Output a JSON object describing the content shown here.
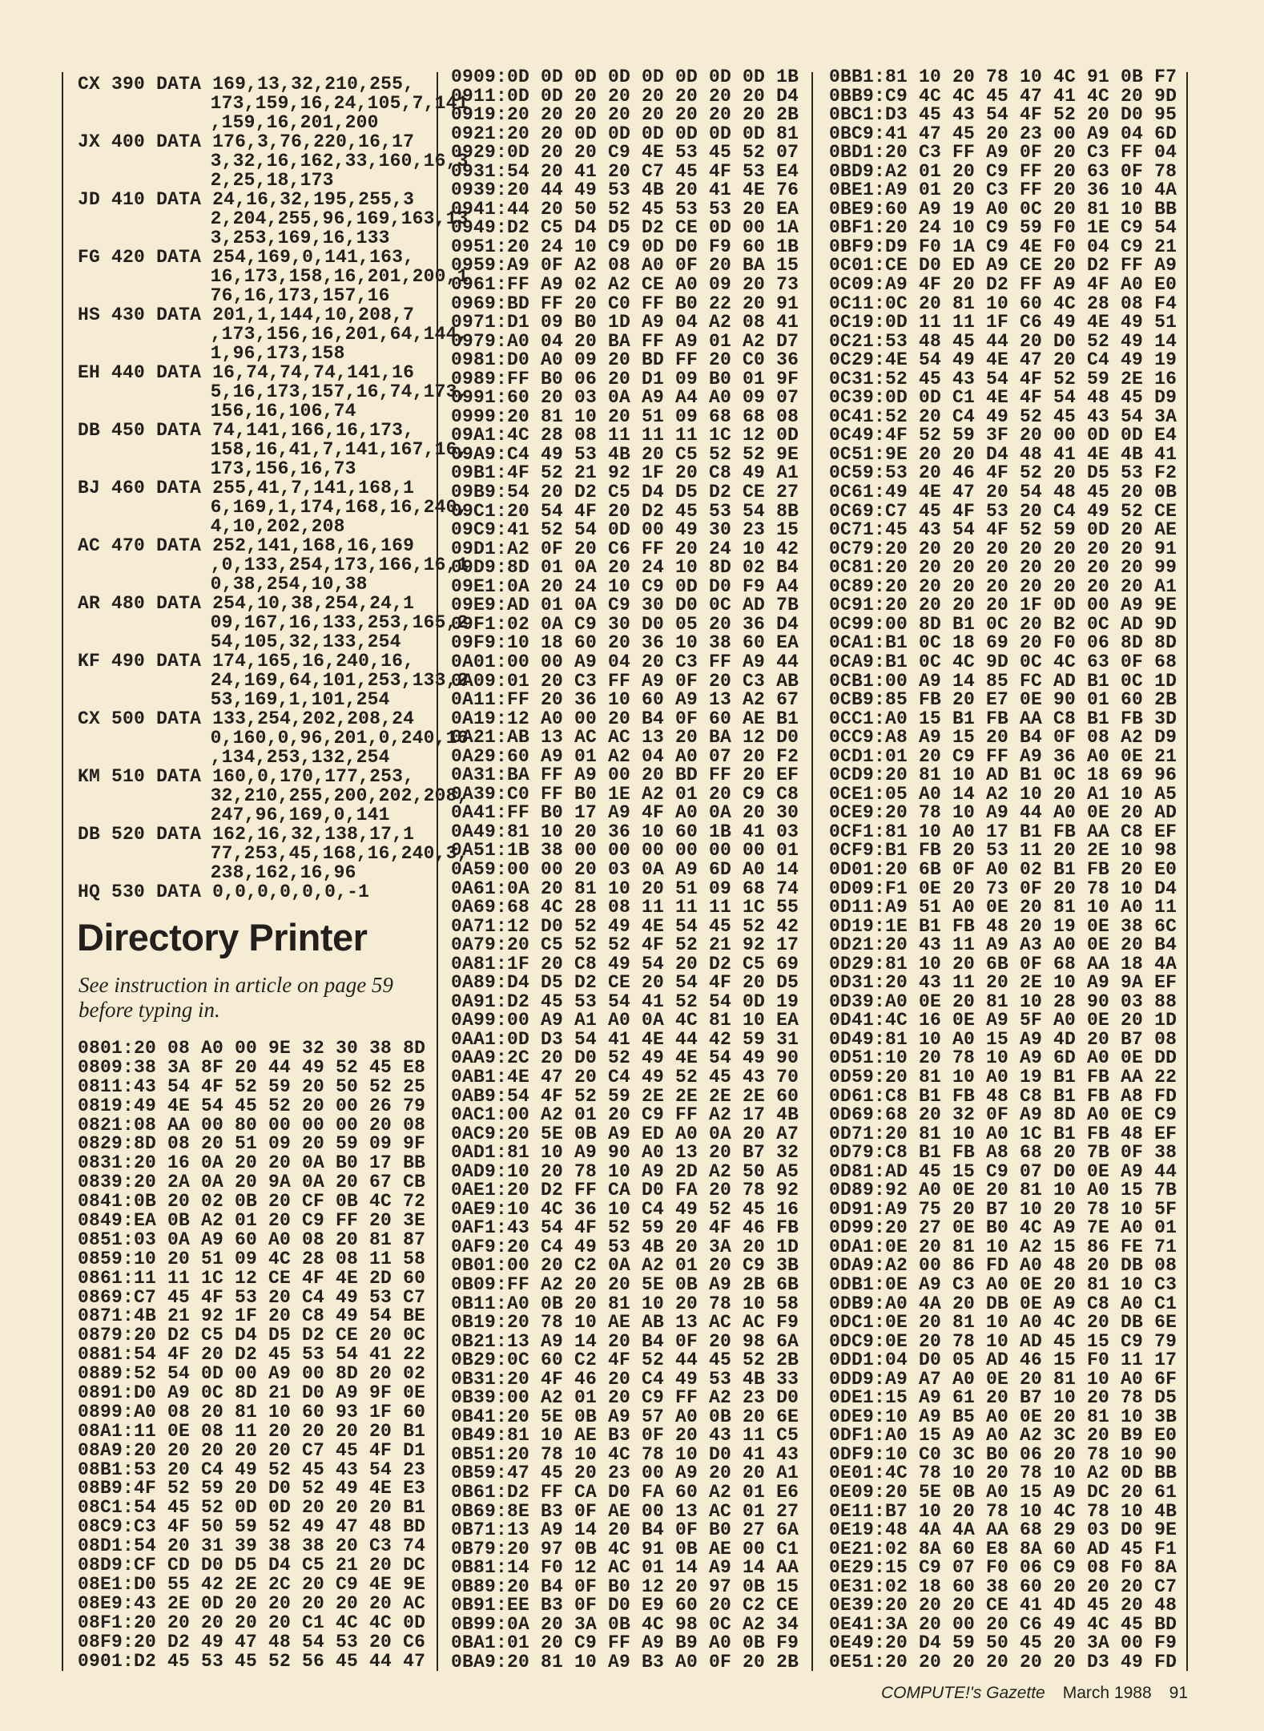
{
  "basic_listing": {
    "keyword": "DATA",
    "statements": [
      {
        "checksum": "CX",
        "number": "390",
        "data": [
          "169,13,32,210,255,",
          "173,159,16,24,105,7,141",
          ",159,16,201,200"
        ]
      },
      {
        "checksum": "JX",
        "number": "400",
        "data": [
          "176,3,76,220,16,17",
          "3,32,16,162,33,160,16,3",
          "2,25,18,173"
        ]
      },
      {
        "checksum": "JD",
        "number": "410",
        "data": [
          "24,16,32,195,255,3",
          "2,204,255,96,169,163,13",
          "3,253,169,16,133"
        ]
      },
      {
        "checksum": "FG",
        "number": "420",
        "data": [
          "254,169,0,141,163,",
          "16,173,158,16,201,200,1",
          "76,16,173,157,16"
        ]
      },
      {
        "checksum": "HS",
        "number": "430",
        "data": [
          "201,1,144,10,208,7",
          ",173,156,16,201,64,144,",
          "1,96,173,158"
        ]
      },
      {
        "checksum": "EH",
        "number": "440",
        "data": [
          "16,74,74,74,141,16",
          "5,16,173,157,16,74,173,",
          "156,16,106,74"
        ]
      },
      {
        "checksum": "DB",
        "number": "450",
        "data": [
          "74,141,166,16,173,",
          "158,16,41,7,141,167,16,",
          "173,156,16,73"
        ]
      },
      {
        "checksum": "BJ",
        "number": "460",
        "data": [
          "255,41,7,141,168,1",
          "6,169,1,174,168,16,240,",
          "4,10,202,208"
        ]
      },
      {
        "checksum": "AC",
        "number": "470",
        "data": [
          "252,141,168,16,169",
          ",0,133,254,173,166,16,1",
          "0,38,254,10,38"
        ]
      },
      {
        "checksum": "AR",
        "number": "480",
        "data": [
          "254,10,38,254,24,1",
          "09,167,16,133,253,165,2",
          "54,105,32,133,254"
        ]
      },
      {
        "checksum": "KF",
        "number": "490",
        "data": [
          "174,165,16,240,16,",
          "24,169,64,101,253,133,2",
          "53,169,1,101,254"
        ]
      },
      {
        "checksum": "CX",
        "number": "500",
        "data": [
          "133,254,202,208,24",
          "0,160,0,96,201,0,240,16",
          ",134,253,132,254"
        ]
      },
      {
        "checksum": "KM",
        "number": "510",
        "data": [
          "160,0,170,177,253,",
          "32,210,255,200,202,208,",
          "247,96,169,0,141"
        ]
      },
      {
        "checksum": "DB",
        "number": "520",
        "data": [
          "162,16,32,138,17,1",
          "77,253,45,168,16,240,3,",
          "238,162,16,96"
        ]
      },
      {
        "checksum": "HQ",
        "number": "530",
        "data": [
          "0,0,0,0,0,0,-1"
        ]
      }
    ]
  },
  "article": {
    "title": "Directory Printer",
    "instructions": "See instruction in article on page 59 before typing in."
  },
  "hex_columns": [
    [
      "0801:20 08 A0 00 9E 32 30 38 8D",
      "0809:38 3A 8F 20 44 49 52 45 E8",
      "0811:43 54 4F 52 59 20 50 52 25",
      "0819:49 4E 54 45 52 20 00 26 79",
      "0821:08 AA 00 80 00 00 00 20 08",
      "0829:8D 08 20 51 09 20 59 09 9F",
      "0831:20 16 0A 20 20 0A B0 17 BB",
      "0839:20 2A 0A 20 9A 0A 20 67 CB",
      "0841:0B 20 02 0B 20 CF 0B 4C 72",
      "0849:EA 0B A2 01 20 C9 FF 20 3E",
      "0851:03 0A A9 60 A0 08 20 81 87",
      "0859:10 20 51 09 4C 28 08 11 58",
      "0861:11 11 1C 12 CE 4F 4E 2D 60",
      "0869:C7 45 4F 53 20 C4 49 53 C7",
      "0871:4B 21 92 1F 20 C8 49 54 BE",
      "0879:20 D2 C5 D4 D5 D2 CE 20 0C",
      "0881:54 4F 20 D2 45 53 54 41 22",
      "0889:52 54 0D 00 A9 00 8D 20 02",
      "0891:D0 A9 0C 8D 21 D0 A9 9F 0E",
      "0899:A0 08 20 81 10 60 93 1F 60",
      "08A1:11 0E 08 11 20 20 20 20 B1",
      "08A9:20 20 20 20 20 C7 45 4F D1",
      "08B1:53 20 C4 49 52 45 43 54 23",
      "08B9:4F 52 59 20 D0 52 49 4E E3",
      "08C1:54 45 52 0D 0D 20 20 20 B1",
      "08C9:C3 4F 50 59 52 49 47 48 BD",
      "08D1:54 20 31 39 38 38 20 C3 74",
      "08D9:CF CD D0 D5 D4 C5 21 20 DC",
      "08E1:D0 55 42 2E 2C 20 C9 4E 9E",
      "08E9:43 2E 0D 20 20 20 20 20 AC",
      "08F1:20 20 20 20 20 C1 4C 4C 0D",
      "08F9:20 D2 49 47 48 54 53 20 C6",
      "0901:D2 45 53 45 52 56 45 44 47"
    ],
    [
      "0909:0D 0D 0D 0D 0D 0D 0D 0D 1B",
      "0911:0D 0D 20 20 20 20 20 20 D4",
      "0919:20 20 20 20 20 20 20 20 2B",
      "0921:20 20 0D 0D 0D 0D 0D 0D 81",
      "0929:0D 20 20 C9 4E 53 45 52 07",
      "0931:54 20 41 20 C7 45 4F 53 E4",
      "0939:20 44 49 53 4B 20 41 4E 76",
      "0941:44 20 50 52 45 53 53 20 EA",
      "0949:D2 C5 D4 D5 D2 CE 0D 00 1A",
      "0951:20 24 10 C9 0D D0 F9 60 1B",
      "0959:A9 0F A2 08 A0 0F 20 BA 15",
      "0961:FF A9 02 A2 CE A0 09 20 73",
      "0969:BD FF 20 C0 FF B0 22 20 91",
      "0971:D1 09 B0 1D A9 04 A2 08 41",
      "0979:A0 04 20 BA FF A9 01 A2 D7",
      "0981:D0 A0 09 20 BD FF 20 C0 36",
      "0989:FF B0 06 20 D1 09 B0 01 9F",
      "0991:60 20 03 0A A9 A4 A0 09 07",
      "0999:20 81 10 20 51 09 68 68 08",
      "09A1:4C 28 08 11 11 11 1C 12 0D",
      "09A9:C4 49 53 4B 20 C5 52 52 9E",
      "09B1:4F 52 21 92 1F 20 C8 49 A1",
      "09B9:54 20 D2 C5 D4 D5 D2 CE 27",
      "09C1:20 54 4F 20 D2 45 53 54 8B",
      "09C9:41 52 54 0D 00 49 30 23 15",
      "09D1:A2 0F 20 C6 FF 20 24 10 42",
      "09D9:8D 01 0A 20 24 10 8D 02 B4",
      "09E1:0A 20 24 10 C9 0D D0 F9 A4",
      "09E9:AD 01 0A C9 30 D0 0C AD 7B",
      "09F1:02 0A C9 30 D0 05 20 36 D4",
      "09F9:10 18 60 20 36 10 38 60 EA",
      "0A01:00 00 A9 04 20 C3 FF A9 44",
      "0A09:01 20 C3 FF A9 0F 20 C3 AB",
      "0A11:FF 20 36 10 60 A9 13 A2 67",
      "0A19:12 A0 00 20 B4 0F 60 AE B1",
      "0A21:AB 13 AC AC 13 20 BA 12 D0",
      "0A29:60 A9 01 A2 04 A0 07 20 F2",
      "0A31:BA FF A9 00 20 BD FF 20 EF",
      "0A39:C0 FF B0 1E A2 01 20 C9 C8",
      "0A41:FF B0 17 A9 4F A0 0A 20 30",
      "0A49:81 10 20 36 10 60 1B 41 03",
      "0A51:1B 38 00 00 00 00 00 00 01",
      "0A59:00 00 20 03 0A A9 6D A0 14",
      "0A61:0A 20 81 10 20 51 09 68 74",
      "0A69:68 4C 28 08 11 11 11 1C 55",
      "0A71:12 D0 52 49 4E 54 45 52 42",
      "0A79:20 C5 52 52 4F 52 21 92 17",
      "0A81:1F 20 C8 49 54 20 D2 C5 69",
      "0A89:D4 D5 D2 CE 20 54 4F 20 D5",
      "0A91:D2 45 53 54 41 52 54 0D 19",
      "0A99:00 A9 A1 A0 0A 4C 81 10 EA",
      "0AA1:0D D3 54 41 4E 44 42 59 31",
      "0AA9:2C 20 D0 52 49 4E 54 49 90",
      "0AB1:4E 47 20 C4 49 52 45 43 70",
      "0AB9:54 4F 52 59 2E 2E 2E 2E 60",
      "0AC1:00 A2 01 20 C9 FF A2 17 4B",
      "0AC9:20 5E 0B A9 ED A0 0A 20 A7",
      "0AD1:81 10 A9 90 A0 13 20 B7 32",
      "0AD9:10 20 78 10 A9 2D A2 50 A5",
      "0AE1:20 D2 FF CA D0 FA 20 78 92",
      "0AE9:10 4C 36 10 C4 49 52 45 16",
      "0AF1:43 54 4F 52 59 20 4F 46 FB",
      "0AF9:20 C4 49 53 4B 20 3A 20 1D",
      "0B01:00 20 C2 0A A2 01 20 C9 3B",
      "0B09:FF A2 20 20 5E 0B A9 2B 6B",
      "0B11:A0 0B 20 81 10 20 78 10 58",
      "0B19:20 78 10 AE AB 13 AC AC F9",
      "0B21:13 A9 14 20 B4 0F 20 98 6A",
      "0B29:0C 60 C2 4F 52 44 45 52 2B",
      "0B31:20 4F 46 20 C4 49 53 4B 33",
      "0B39:00 A2 01 20 C9 FF A2 23 D0",
      "0B41:20 5E 0B A9 57 A0 0B 20 6E",
      "0B49:81 10 AE B3 0F 20 43 11 C5",
      "0B51:20 78 10 4C 78 10 D0 41 43",
      "0B59:47 45 20 23 00 A9 20 20 A1",
      "0B61:D2 FF CA D0 FA 60 A2 01 E6",
      "0B69:8E B3 0F AE 00 13 AC 01 27",
      "0B71:13 A9 14 20 B4 0F B0 27 6A",
      "0B79:20 97 0B 4C 91 0B AE 00 C1",
      "0B81:14 F0 12 AC 01 14 A9 14 AA",
      "0B89:20 B4 0F B0 12 20 97 0B 15",
      "0B91:EE B3 0F D0 E9 60 20 C2 CE",
      "0B99:0A 20 3A 0B 4C 98 0C A2 34",
      "0BA1:01 20 C9 FF A9 B9 A0 0B F9",
      "0BA9:20 81 10 A9 B3 A0 0F 20 2B"
    ],
    [
      "0BB1:81 10 20 78 10 4C 91 0B F7",
      "0BB9:C9 4C 4C 45 47 41 4C 20 9D",
      "0BC1:D3 45 43 54 4F 52 20 D0 95",
      "0BC9:41 47 45 20 23 00 A9 04 6D",
      "0BD1:20 C3 FF A9 0F 20 C3 FF 04",
      "0BD9:A2 01 20 C9 FF 20 63 0F 78",
      "0BE1:A9 01 20 C3 FF 20 36 10 4A",
      "0BE9:60 A9 19 A0 0C 20 81 10 BB",
      "0BF1:20 24 10 C9 59 F0 1E C9 54",
      "0BF9:D9 F0 1A C9 4E F0 04 C9 21",
      "0C01:CE D0 ED A9 CE 20 D2 FF A9",
      "0C09:A9 4F 20 D2 FF A9 4F A0 E0",
      "0C11:0C 20 81 10 60 4C 28 08 F4",
      "0C19:0D 11 11 1F C6 49 4E 49 51",
      "0C21:53 48 45 44 20 D0 52 49 14",
      "0C29:4E 54 49 4E 47 20 C4 49 19",
      "0C31:52 45 43 54 4F 52 59 2E 16",
      "0C39:0D 0D C1 4E 4F 54 48 45 D9",
      "0C41:52 20 C4 49 52 45 43 54 3A",
      "0C49:4F 52 59 3F 20 00 0D 0D E4",
      "0C51:9E 20 20 D4 48 41 4E 4B 41",
      "0C59:53 20 46 4F 52 20 D5 53 F2",
      "0C61:49 4E 47 20 54 48 45 20 0B",
      "0C69:C7 45 4F 53 20 C4 49 52 CE",
      "0C71:45 43 54 4F 52 59 0D 20 AE",
      "0C79:20 20 20 20 20 20 20 20 91",
      "0C81:20 20 20 20 20 20 20 20 99",
      "0C89:20 20 20 20 20 20 20 20 A1",
      "0C91:20 20 20 20 1F 0D 00 A9 9E",
      "0C99:00 8D B1 0C 20 B2 0C AD 9D",
      "0CA1:B1 0C 18 69 20 F0 06 8D 8D",
      "0CA9:B1 0C 4C 9D 0C 4C 63 0F 68",
      "0CB1:00 A9 14 85 FC AD B1 0C 1D",
      "0CB9:85 FB 20 E7 0E 90 01 60 2B",
      "0CC1:A0 15 B1 FB AA C8 B1 FB 3D",
      "0CC9:A8 A9 15 20 B4 0F 08 A2 D9",
      "0CD1:01 20 C9 FF A9 36 A0 0E 21",
      "0CD9:20 81 10 AD B1 0C 18 69 96",
      "0CE1:05 A0 14 A2 10 20 A1 10 A5",
      "0CE9:20 78 10 A9 44 A0 0E 20 AD",
      "0CF1:81 10 A0 17 B1 FB AA C8 EF",
      "0CF9:B1 FB 20 53 11 20 2E 10 98",
      "0D01:20 6B 0F A0 02 B1 FB 20 E0",
      "0D09:F1 0E 20 73 0F 20 78 10 D4",
      "0D11:A9 51 A0 0E 20 81 10 A0 11",
      "0D19:1E B1 FB 48 20 19 0E 38 6C",
      "0D21:20 43 11 A9 A3 A0 0E 20 B4",
      "0D29:81 10 20 6B 0F 68 AA 18 4A",
      "0D31:20 43 11 20 2E 10 A9 9A EF",
      "0D39:A0 0E 20 81 10 28 90 03 88",
      "0D41:4C 16 0E A9 5F A0 0E 20 1D",
      "0D49:81 10 A0 15 A9 4D 20 B7 08",
      "0D51:10 20 78 10 A9 6D A0 0E DD",
      "0D59:20 81 10 A0 19 B1 FB AA 22",
      "0D61:C8 B1 FB 48 C8 B1 FB A8 FD",
      "0D69:68 20 32 0F A9 8D A0 0E C9",
      "0D71:20 81 10 A0 1C B1 FB 48 EF",
      "0D79:C8 B1 FB A8 68 20 7B 0F 38",
      "0D81:AD 45 15 C9 07 D0 0E A9 44",
      "0D89:92 A0 0E 20 81 10 A0 15 7B",
      "0D91:A9 75 20 B7 10 20 78 10 5F",
      "0D99:20 27 0E B0 4C A9 7E A0 01",
      "0DA1:0E 20 81 10 A2 15 86 FE 71",
      "0DA9:A2 00 86 FD A0 48 20 DB 08",
      "0DB1:0E A9 C3 A0 0E 20 81 10 C3",
      "0DB9:A0 4A 20 DB 0E A9 C8 A0 C1",
      "0DC1:0E 20 81 10 A0 4C 20 DB 6E",
      "0DC9:0E 20 78 10 AD 45 15 C9 79",
      "0DD1:04 D0 05 AD 46 15 F0 11 17",
      "0DD9:A9 A7 A0 0E 20 81 10 A0 6F",
      "0DE1:15 A9 61 20 B7 10 20 78 D5",
      "0DE9:10 A9 B5 A0 0E 20 81 10 3B",
      "0DF1:A0 15 A9 A0 A2 3C 20 B9 E0",
      "0DF9:10 C0 3C B0 06 20 78 10 90",
      "0E01:4C 78 10 20 78 10 A2 0D BB",
      "0E09:20 5E 0B A0 15 A9 DC 20 61",
      "0E11:B7 10 20 78 10 4C 78 10 4B",
      "0E19:48 4A 4A AA 68 29 03 D0 9E",
      "0E21:02 8A 60 E8 8A 60 AD 45 F1",
      "0E29:15 C9 07 F0 06 C9 08 F0 8A",
      "0E31:02 18 60 38 60 20 20 20 C7",
      "0E39:20 20 20 CE 41 4D 45 20 48",
      "0E41:3A 20 00 20 C6 49 4C 45 BD",
      "0E49:20 D4 59 50 45 20 3A 00 F9",
      "0E51:20 20 20 20 20 20 D3 49 FD"
    ]
  ],
  "footer": {
    "magazine": "COMPUTE!'s Gazette",
    "issue": "March 1988",
    "page_number": "91"
  },
  "colors": {
    "paper": "#f6ebd3",
    "ink": "#231f1c"
  }
}
